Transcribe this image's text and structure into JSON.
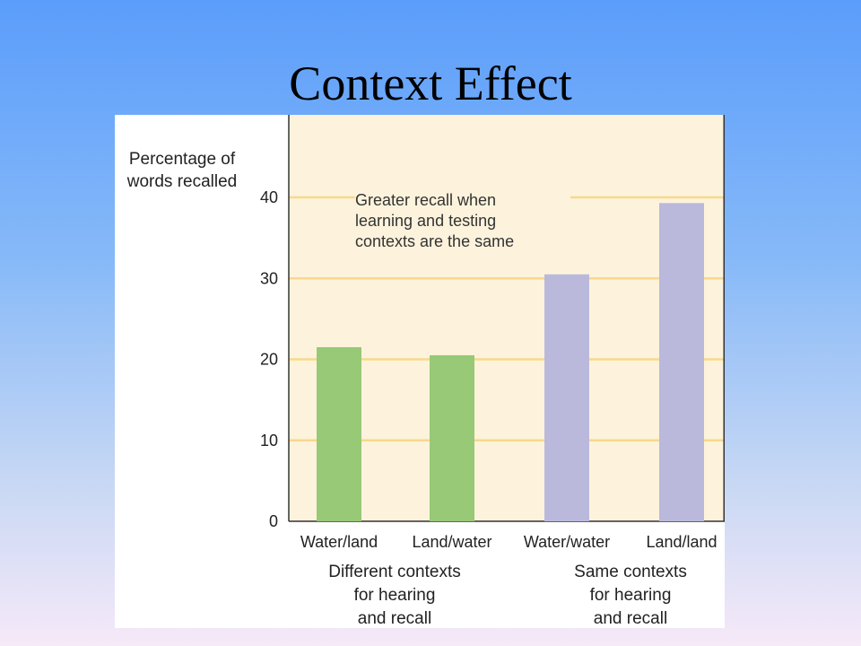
{
  "slide": {
    "title": "Context Effect"
  },
  "chart_data": {
    "type": "bar",
    "ylabel_lines": [
      "Percentage of",
      "words recalled"
    ],
    "ylim": [
      0,
      40
    ],
    "yticks": [
      0,
      10,
      20,
      30,
      40
    ],
    "categories": [
      "Water/land",
      "Land/water",
      "Water/water",
      "Land/land"
    ],
    "values": [
      21.5,
      20.5,
      30.5,
      39.3
    ],
    "colors": [
      "#97c976",
      "#97c976",
      "#bab9dc",
      "#bab9dc"
    ],
    "plot_background": "#fdf3dc",
    "gridline_color": "#f7d98a",
    "grid": true,
    "annotation_lines": [
      "Greater recall when",
      "learning and testing",
      "contexts are the same"
    ],
    "groups": [
      {
        "lines": [
          "Different contexts",
          "for hearing",
          "and recall"
        ]
      },
      {
        "lines": [
          "Same contexts",
          "for hearing",
          "and recall"
        ]
      }
    ]
  }
}
